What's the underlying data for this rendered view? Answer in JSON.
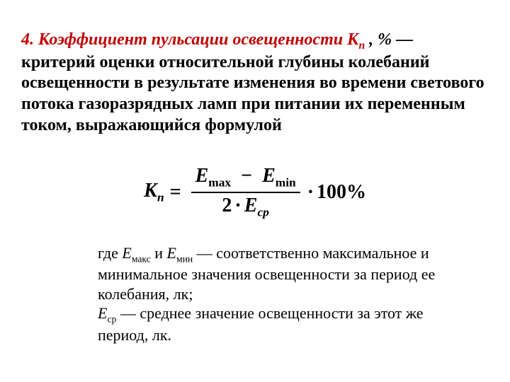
{
  "heading": {
    "lead_number": "4.",
    "lead_title": "Коэффициент пульсации освещенности",
    "lead_symbol": "К",
    "lead_symbol_sub": "п",
    "lead_tail": ", % —",
    "body": "критерий оценки относительной глубины колебаний освещенности в результате изменения во времени светового потока газоразрядных ламп при питании их переменным током, выражающийся формулой"
  },
  "formula": {
    "lhs_sym": "К",
    "lhs_sub": "п",
    "num_E1": "E",
    "num_sub1": "max",
    "num_minus": "−",
    "num_E2": "E",
    "num_sub2": "min",
    "den_two": "2",
    "den_dot": "·",
    "den_E": "E",
    "den_sub": "ср",
    "tail_dot": "·",
    "tail_num": "100%"
  },
  "explain": {
    "l1a": "где ",
    "E": "Е",
    "sub_max": "макс",
    "l1b": " и ",
    "sub_min": "мин",
    "l1c": " — соответственно максимальное и минимальное значения освещенности за период ее колебания, лк;",
    "sub_sr": "ср",
    "l2": " — среднее значение освещенности за этот же период, лк."
  },
  "colors": {
    "accent": "#c00000",
    "text": "#000000",
    "bg": "#ffffff"
  },
  "fonts": {
    "family": "Times New Roman",
    "para_size_pt": 18,
    "formula_size_pt": 21,
    "explain_size_pt": 16
  }
}
